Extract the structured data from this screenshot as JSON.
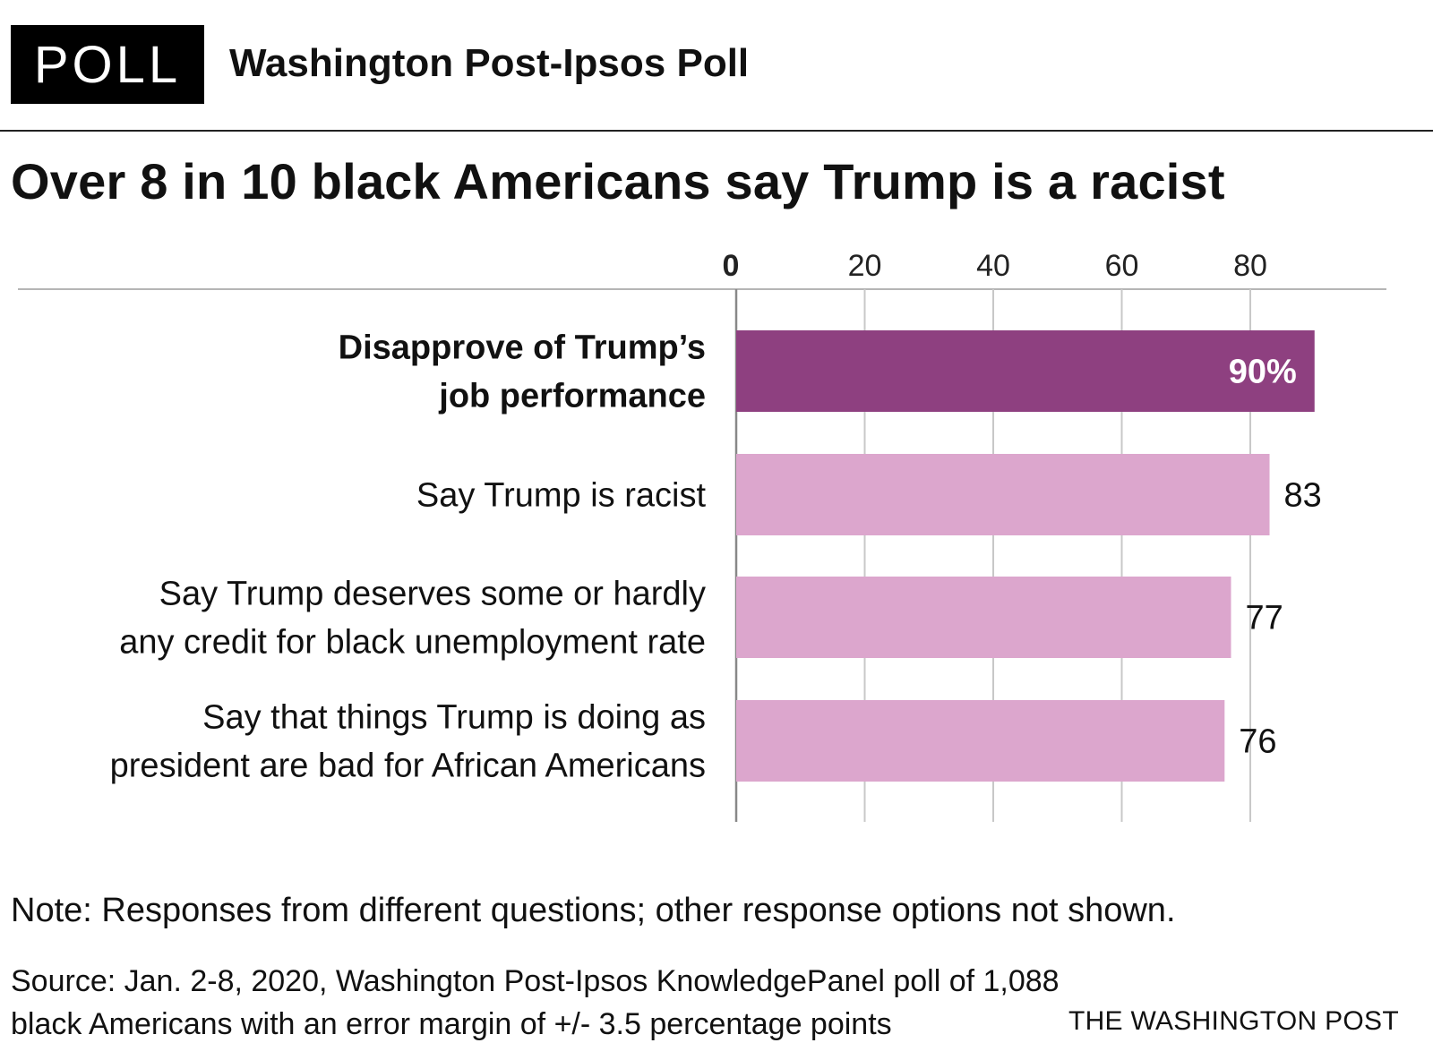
{
  "header": {
    "badge": "POLL",
    "kicker": "Washington Post-Ipsos Poll"
  },
  "headline": "Over 8 in 10 black Americans say Trump is a racist",
  "colors": {
    "highlight": "#8e4080",
    "bar": "#dca6cd",
    "grid": "#c8c8c8",
    "axis": "#888888"
  },
  "chart_data": {
    "type": "bar",
    "orientation": "horizontal",
    "title": "Over 8 in 10 black Americans say Trump is a racist",
    "xlim": [
      0,
      90
    ],
    "ticks": [
      0,
      20,
      40,
      60,
      80
    ],
    "tick_labels": [
      "0",
      "20",
      "40",
      "60",
      "80"
    ],
    "categories": [
      [
        "Disapprove of Trump’s",
        "job performance"
      ],
      [
        "Say Trump is racist"
      ],
      [
        "Say Trump deserves some or hardly",
        "any credit for black unemployment rate"
      ],
      [
        "Say that things Trump is doing as",
        "president are bad for African Americans"
      ]
    ],
    "values": [
      90,
      83,
      77,
      76
    ],
    "value_labels": [
      "90%",
      "83",
      "77",
      "76"
    ],
    "highlighted_index": 0
  },
  "footer": {
    "note": "Note: Responses from different questions; other response options not shown.",
    "source_lines": [
      "Source: Jan. 2-8, 2020, Washington Post-Ipsos KnowledgePanel poll of 1,088",
      "black Americans with an error margin of +/- 3.5 percentage points"
    ],
    "credit": "THE WASHINGTON POST"
  }
}
